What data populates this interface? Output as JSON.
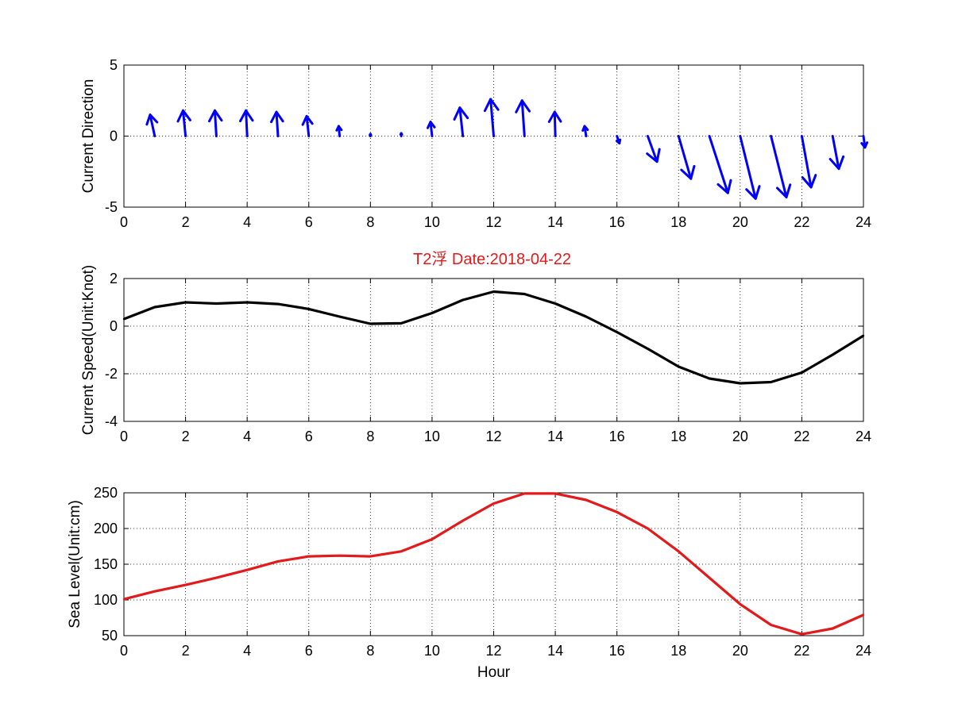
{
  "chart_data": [
    {
      "type": "quiver",
      "ylabel": "Current Direction",
      "xlabel": "",
      "xlim": [
        0,
        24
      ],
      "ylim": [
        -5,
        5
      ],
      "xticks": [
        0,
        2,
        4,
        6,
        8,
        10,
        12,
        14,
        16,
        18,
        20,
        22,
        24
      ],
      "yticks": [
        -5,
        0,
        5
      ],
      "grid": true,
      "color": "#0000ff",
      "x": [
        1,
        2,
        3,
        4,
        5,
        6,
        7,
        8,
        9,
        10,
        11,
        12,
        13,
        14,
        15,
        16,
        17,
        18,
        19,
        20,
        21,
        22,
        23,
        24
      ],
      "u": [
        -0.15,
        -0.08,
        -0.05,
        -0.04,
        -0.05,
        -0.07,
        -0.03,
        0,
        0,
        -0.05,
        -0.1,
        -0.1,
        -0.08,
        -0.02,
        -0.05,
        0.08,
        0.3,
        0.4,
        0.6,
        0.5,
        0.5,
        0.3,
        0.2,
        0.05
      ],
      "v": [
        1.5,
        1.8,
        1.8,
        1.8,
        1.7,
        1.4,
        0.7,
        0.15,
        0.2,
        1.0,
        2.0,
        2.6,
        2.5,
        1.7,
        0.7,
        -0.5,
        -1.8,
        -3.0,
        -4.0,
        -4.4,
        -4.3,
        -3.6,
        -2.3,
        -0.8
      ]
    },
    {
      "type": "line",
      "title": "T2浮    Date:2018-04-22",
      "title_color": "#e31a1c",
      "ylabel": "Current Speed(Unit:Knot)",
      "xlabel": "",
      "xlim": [
        0,
        24
      ],
      "ylim": [
        -4,
        2
      ],
      "xticks": [
        0,
        2,
        4,
        6,
        8,
        10,
        12,
        14,
        16,
        18,
        20,
        22,
        24
      ],
      "yticks": [
        -4,
        -2,
        0,
        2
      ],
      "grid": true,
      "color": "#000000",
      "x": [
        0,
        1,
        2,
        3,
        4,
        5,
        6,
        7,
        8,
        9,
        10,
        11,
        12,
        13,
        14,
        15,
        16,
        17,
        18,
        19,
        20,
        21,
        22,
        23,
        24
      ],
      "y": [
        0.3,
        0.8,
        1.0,
        0.95,
        1.0,
        0.93,
        0.72,
        0.4,
        0.1,
        0.12,
        0.55,
        1.1,
        1.45,
        1.35,
        0.95,
        0.4,
        -0.25,
        -0.95,
        -1.7,
        -2.2,
        -2.4,
        -2.35,
        -1.95,
        -1.2,
        -0.4
      ]
    },
    {
      "type": "line",
      "ylabel": "Sea Level(Unit:cm)",
      "xlabel": "Hour",
      "xlim": [
        0,
        24
      ],
      "ylim": [
        50,
        250
      ],
      "xticks": [
        0,
        2,
        4,
        6,
        8,
        10,
        12,
        14,
        16,
        18,
        20,
        22,
        24
      ],
      "yticks": [
        50,
        100,
        150,
        200,
        250
      ],
      "grid": true,
      "color": "#e31a1c",
      "x": [
        0,
        1,
        2,
        3,
        4,
        5,
        6,
        7,
        8,
        9,
        10,
        11,
        12,
        13,
        14,
        15,
        16,
        17,
        18,
        19,
        20,
        21,
        22,
        23,
        24
      ],
      "y": [
        101,
        112,
        121,
        131,
        142,
        154,
        161,
        162,
        161,
        168,
        185,
        211,
        235,
        249,
        249,
        240,
        223,
        200,
        168,
        131,
        94,
        65,
        52,
        60,
        79
      ]
    }
  ]
}
